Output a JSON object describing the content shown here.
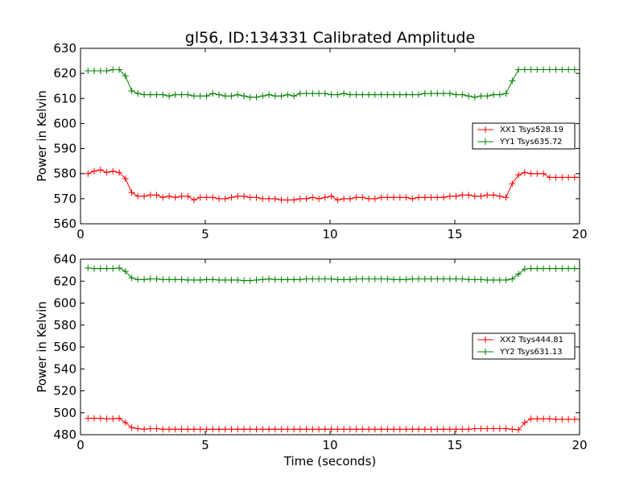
{
  "chart_data": [
    {
      "type": "line",
      "title": "gl56, ID:134331 Calibrated Amplitude",
      "xlabel": "",
      "ylabel": "Power in Kelvin",
      "xlim": [
        0,
        20
      ],
      "ylim": [
        560,
        630
      ],
      "xticks": [
        0,
        5,
        10,
        15,
        20
      ],
      "yticks": [
        560,
        570,
        580,
        590,
        600,
        610,
        620,
        630
      ],
      "legend_position": "center-right",
      "grid": false,
      "series": [
        {
          "name": "XX1 Tsys528.19",
          "color": "#ff0000",
          "x": [
            0.3,
            0.55,
            0.8,
            1.05,
            1.3,
            1.55,
            1.8,
            2.05,
            2.3,
            2.55,
            2.8,
            3.05,
            3.3,
            3.55,
            3.8,
            4.05,
            4.3,
            4.55,
            4.8,
            5.05,
            5.3,
            5.55,
            5.8,
            6.05,
            6.3,
            6.55,
            6.8,
            7.05,
            7.3,
            7.55,
            7.8,
            8.05,
            8.3,
            8.55,
            8.8,
            9.05,
            9.3,
            9.55,
            9.8,
            10.05,
            10.3,
            10.55,
            10.8,
            11.05,
            11.3,
            11.55,
            11.8,
            12.05,
            12.3,
            12.55,
            12.8,
            13.05,
            13.3,
            13.55,
            13.8,
            14.05,
            14.3,
            14.55,
            14.8,
            15.05,
            15.3,
            15.55,
            15.8,
            16.05,
            16.3,
            16.55,
            16.8,
            17.05,
            17.3,
            17.55,
            17.8,
            18.05,
            18.3,
            18.55,
            18.8,
            19.05,
            19.3,
            19.55,
            19.8,
            20.0
          ],
          "y": [
            580,
            581,
            581.5,
            580.5,
            581,
            580.5,
            578,
            572.5,
            571,
            571,
            571.5,
            571.5,
            570.5,
            571,
            570.5,
            571,
            571,
            569.5,
            570.5,
            570.5,
            570.5,
            570,
            570,
            570.5,
            571,
            571,
            570.5,
            570.5,
            570,
            570,
            570,
            569.5,
            569.5,
            569.5,
            570,
            570,
            570.5,
            570,
            570.5,
            571,
            569.5,
            570,
            570,
            570.5,
            570.5,
            570,
            570,
            570.5,
            570.5,
            570.5,
            570.5,
            570.5,
            570,
            570.5,
            570.5,
            570.5,
            570.5,
            570.5,
            571,
            571,
            571.5,
            571.5,
            571,
            571,
            571.5,
            571.5,
            571,
            570.5,
            576,
            579.5,
            580.5,
            580,
            580,
            580,
            578.5,
            578.5,
            578.5,
            578.5,
            578.5,
            578.5
          ]
        },
        {
          "name": "YY1 Tsys635.72",
          "color": "#008000",
          "x": [
            0.3,
            0.55,
            0.8,
            1.05,
            1.3,
            1.55,
            1.8,
            2.05,
            2.3,
            2.55,
            2.8,
            3.05,
            3.3,
            3.55,
            3.8,
            4.05,
            4.3,
            4.55,
            4.8,
            5.05,
            5.3,
            5.55,
            5.8,
            6.05,
            6.3,
            6.55,
            6.8,
            7.05,
            7.3,
            7.55,
            7.8,
            8.05,
            8.3,
            8.55,
            8.8,
            9.05,
            9.3,
            9.55,
            9.8,
            10.05,
            10.3,
            10.55,
            10.8,
            11.05,
            11.3,
            11.55,
            11.8,
            12.05,
            12.3,
            12.55,
            12.8,
            13.05,
            13.3,
            13.55,
            13.8,
            14.05,
            14.3,
            14.55,
            14.8,
            15.05,
            15.3,
            15.55,
            15.8,
            16.05,
            16.3,
            16.55,
            16.8,
            17.05,
            17.3,
            17.55,
            17.8,
            18.05,
            18.3,
            18.55,
            18.8,
            19.05,
            19.3,
            19.55,
            19.8,
            20.0
          ],
          "y": [
            621,
            621,
            621,
            621,
            621.5,
            621.5,
            619,
            613,
            612,
            611.5,
            611.5,
            611.5,
            611.5,
            611,
            611.5,
            611.5,
            611.5,
            611,
            611,
            611,
            612,
            611.5,
            611,
            611,
            611.5,
            611,
            610.5,
            610.5,
            611,
            611.5,
            611,
            611,
            611.5,
            611,
            612,
            612,
            612,
            612,
            612,
            611.5,
            611.5,
            612,
            611.5,
            611.5,
            611.5,
            611.5,
            611.5,
            611.5,
            611.5,
            611.5,
            611.5,
            611.5,
            611.5,
            611.5,
            612,
            612,
            612,
            612,
            612,
            611.5,
            611.5,
            611,
            610.5,
            611,
            611,
            611.5,
            611.5,
            612,
            617,
            621.5,
            621.5,
            621.5,
            621.5,
            621.5,
            621.5,
            621.5,
            621.5,
            621.5,
            621.5,
            621.5
          ]
        }
      ]
    },
    {
      "type": "line",
      "title": "",
      "xlabel": "Time (seconds)",
      "ylabel": "Power in Kelvin",
      "xlim": [
        0,
        20
      ],
      "ylim": [
        480,
        640
      ],
      "xticks": [
        0,
        5,
        10,
        15,
        20
      ],
      "yticks": [
        480,
        500,
        520,
        540,
        560,
        580,
        600,
        620,
        640
      ],
      "legend_position": "center-right",
      "grid": false,
      "series": [
        {
          "name": "XX2 Tsys444.81",
          "color": "#ff0000",
          "x": [
            0.3,
            0.55,
            0.8,
            1.05,
            1.3,
            1.55,
            1.8,
            2.05,
            2.3,
            2.55,
            2.8,
            3.05,
            3.3,
            3.55,
            3.8,
            4.05,
            4.3,
            4.55,
            4.8,
            5.05,
            5.3,
            5.55,
            5.8,
            6.05,
            6.3,
            6.55,
            6.8,
            7.05,
            7.3,
            7.55,
            7.8,
            8.05,
            8.3,
            8.55,
            8.8,
            9.05,
            9.3,
            9.55,
            9.8,
            10.05,
            10.3,
            10.55,
            10.8,
            11.05,
            11.3,
            11.55,
            11.8,
            12.05,
            12.3,
            12.55,
            12.8,
            13.05,
            13.3,
            13.55,
            13.8,
            14.05,
            14.3,
            14.55,
            14.8,
            15.05,
            15.3,
            15.55,
            15.8,
            16.05,
            16.3,
            16.55,
            16.8,
            17.05,
            17.3,
            17.55,
            17.8,
            18.05,
            18.3,
            18.55,
            18.8,
            19.05,
            19.3,
            19.55,
            19.8,
            20.0
          ],
          "y": [
            495,
            495,
            495,
            494.5,
            494.5,
            495,
            491,
            486.5,
            485.5,
            485,
            485.5,
            485.5,
            485,
            485,
            485,
            485,
            485,
            485,
            485,
            485,
            485,
            485,
            485,
            485,
            485,
            485,
            485,
            485,
            485,
            485,
            485,
            485,
            485,
            485,
            485,
            485,
            485,
            485,
            485,
            485,
            485,
            485,
            485,
            485,
            485,
            485,
            485,
            485,
            485,
            485,
            485,
            485,
            485,
            485,
            485,
            485,
            485,
            485,
            485,
            485,
            485,
            485,
            485.5,
            485.5,
            485.5,
            485.5,
            485.5,
            485.5,
            485,
            484.5,
            491,
            494.5,
            494.5,
            494.5,
            494.5,
            494,
            494,
            494,
            494,
            494
          ]
        },
        {
          "name": "YY2 Tsys631.13",
          "color": "#008000",
          "x": [
            0.3,
            0.55,
            0.8,
            1.05,
            1.3,
            1.55,
            1.8,
            2.05,
            2.3,
            2.55,
            2.8,
            3.05,
            3.3,
            3.55,
            3.8,
            4.05,
            4.3,
            4.55,
            4.8,
            5.05,
            5.3,
            5.55,
            5.8,
            6.05,
            6.3,
            6.55,
            6.8,
            7.05,
            7.3,
            7.55,
            7.8,
            8.05,
            8.3,
            8.55,
            8.8,
            9.05,
            9.3,
            9.55,
            9.8,
            10.05,
            10.3,
            10.55,
            10.8,
            11.05,
            11.3,
            11.55,
            11.8,
            12.05,
            12.3,
            12.55,
            12.8,
            13.05,
            13.3,
            13.55,
            13.8,
            14.05,
            14.3,
            14.55,
            14.8,
            15.05,
            15.3,
            15.55,
            15.8,
            16.05,
            16.3,
            16.55,
            16.8,
            17.05,
            17.3,
            17.55,
            17.8,
            18.05,
            18.3,
            18.55,
            18.8,
            19.05,
            19.3,
            19.55,
            19.8,
            20.0
          ],
          "y": [
            632,
            631.5,
            631.5,
            631.5,
            631.5,
            632,
            629,
            623,
            621.5,
            621.5,
            622,
            622,
            621.5,
            621.5,
            621.5,
            621.5,
            621,
            621,
            621,
            621.5,
            621.5,
            621,
            621,
            621,
            621,
            620.5,
            620.5,
            621,
            621.5,
            622,
            621.5,
            621.5,
            621.5,
            621.5,
            621.5,
            622,
            622,
            622,
            622,
            622,
            621.5,
            621.5,
            621.5,
            622,
            622,
            622,
            622,
            622,
            622,
            621.5,
            621.5,
            621.5,
            622,
            622,
            622,
            622,
            622,
            622,
            622,
            622,
            622,
            621.5,
            621.5,
            621.5,
            621,
            621,
            621,
            621,
            622,
            626.5,
            631,
            631.5,
            631.5,
            631.5,
            631.5,
            631.5,
            631.5,
            631.5,
            631.5,
            631.5
          ]
        }
      ]
    }
  ]
}
